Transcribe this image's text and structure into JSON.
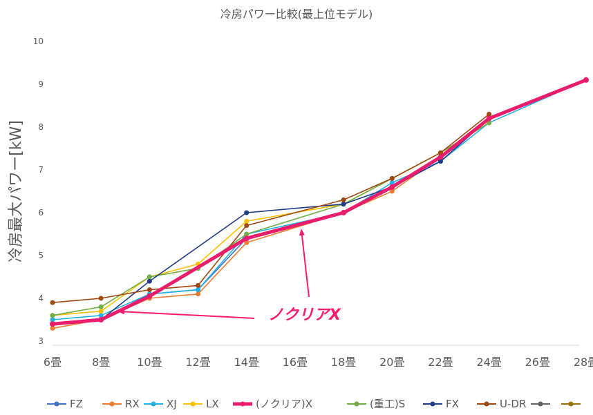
{
  "chart_data": {
    "type": "line",
    "title": "冷房パワー比較(最上位モデル)",
    "ylabel": "冷房最大パワー[kW]",
    "xlabel": "",
    "ylim": [
      3,
      10
    ],
    "yticks": [
      3,
      4,
      5,
      6,
      7,
      8,
      9,
      10
    ],
    "xticks": [
      "6畳",
      "8畳",
      "10畳",
      "12畳",
      "14畳",
      "16畳",
      "18畳",
      "20畳",
      "22畳",
      "24畳",
      "26畳",
      "28畳"
    ],
    "grid": false,
    "legend_position": "bottom",
    "series": [
      {
        "name": "FZ",
        "color": "#4472c4",
        "x": [
          0,
          1,
          2,
          3,
          4,
          6,
          7,
          8,
          9,
          11
        ],
        "y": [
          3.4,
          3.5,
          4.1,
          4.2,
          5.4,
          6.0,
          6.6,
          7.3,
          8.2,
          9.1
        ]
      },
      {
        "name": "RX",
        "color": "#ed7d31",
        "x": [
          0,
          1,
          2,
          3,
          4,
          6,
          7,
          8,
          9
        ],
        "y": [
          3.3,
          3.5,
          4.0,
          4.1,
          5.3,
          6.0,
          6.5,
          7.3,
          8.2
        ]
      },
      {
        "name": "XJ",
        "color": "#20b0e8",
        "x": [
          0,
          1,
          2,
          3,
          4,
          6,
          7,
          8,
          9,
          11
        ],
        "y": [
          3.5,
          3.6,
          4.1,
          4.2,
          5.5,
          6.0,
          6.7,
          7.2,
          8.1,
          9.1
        ]
      },
      {
        "name": "LX",
        "color": "#ffc000",
        "x": [
          0,
          1,
          2,
          3,
          4,
          6,
          7,
          8,
          9
        ],
        "y": [
          3.6,
          3.7,
          4.5,
          4.8,
          5.8,
          6.2,
          6.8,
          7.4,
          8.1
        ]
      },
      {
        "name": "(ノクリア)X",
        "color": "#ea1c6c",
        "thick": true,
        "x": [
          0,
          1,
          2,
          4,
          6,
          7,
          8,
          9,
          11
        ],
        "y": [
          3.4,
          3.5,
          4.05,
          5.4,
          6.0,
          6.6,
          7.3,
          8.2,
          9.1
        ]
      },
      {
        "name": "(重工)S",
        "color": "#70ad47",
        "x": [
          0,
          1,
          2,
          3,
          4,
          6,
          7,
          8,
          9
        ],
        "y": [
          3.6,
          3.8,
          4.5,
          4.7,
          5.5,
          6.2,
          6.8,
          7.4,
          8.1
        ]
      },
      {
        "name": "FX",
        "color": "#1f3c88",
        "x": [
          0,
          1,
          2,
          4,
          6,
          7,
          8,
          9
        ],
        "y": [
          3.4,
          3.5,
          4.4,
          6.0,
          6.2,
          6.6,
          7.2,
          8.2
        ]
      },
      {
        "name": "U-DR",
        "color": "#9e480e",
        "x": [
          0,
          1,
          2,
          3,
          4,
          6,
          7,
          8,
          9
        ],
        "y": [
          3.9,
          4.0,
          4.2,
          4.3,
          5.7,
          6.3,
          6.8,
          7.4,
          8.3
        ]
      },
      {
        "name": "",
        "color": "#636363",
        "x": [],
        "y": []
      },
      {
        "name": "",
        "color": "#997300",
        "x": [],
        "y": []
      }
    ],
    "annotation": {
      "text": "ノクリアX"
    }
  }
}
